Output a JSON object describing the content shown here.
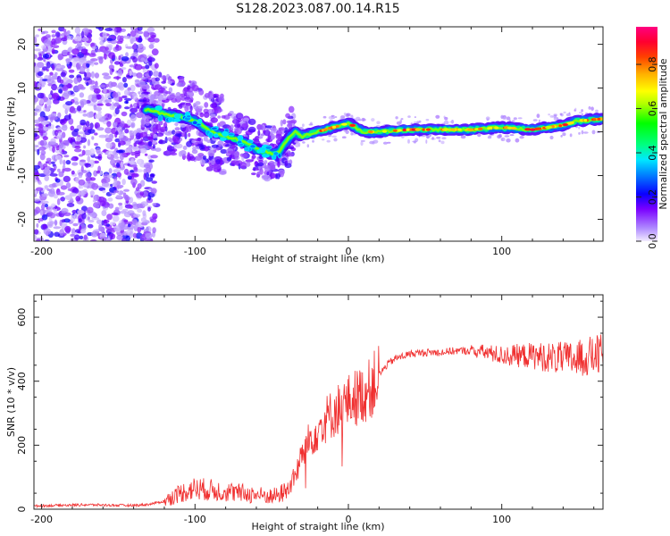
{
  "title": "S128.2023.087.00.14.R15",
  "chart_data": [
    {
      "type": "heatmap",
      "xlabel": "Height of straight line (km)",
      "ylabel": "Frequency (Hz)",
      "xlim": [
        -205,
        166
      ],
      "ylim": [
        -25,
        24
      ],
      "xticks": [
        -200,
        -100,
        0,
        100
      ],
      "yticks": [
        -20,
        -10,
        0,
        10,
        20
      ],
      "colorbar": {
        "label": "Normalized spectral amplitude",
        "range": [
          0,
          0.97
        ],
        "ticks": [
          0.0,
          0.2,
          0.4,
          0.6,
          0.8
        ]
      },
      "ridge": {
        "x": [
          -130,
          -120,
          -110,
          -100,
          -90,
          -80,
          -70,
          -60,
          -50,
          -45,
          -40,
          -35,
          -30,
          -20,
          -10,
          0,
          10,
          20,
          40,
          60,
          80,
          100,
          120,
          140,
          150,
          166
        ],
        "y": [
          5,
          4,
          3.5,
          2.5,
          0,
          -1,
          -2,
          -4,
          -5,
          -4.5,
          -2,
          0,
          -1,
          0,
          1,
          2,
          0,
          0,
          0.5,
          0.5,
          0.5,
          1,
          0.5,
          1.5,
          2.5,
          3
        ]
      }
    },
    {
      "type": "line",
      "xlabel": "Height of straight line (km)",
      "ylabel": "SNR (10 * v/v)",
      "xlim": [
        -205,
        166
      ],
      "ylim": [
        0,
        670
      ],
      "xticks": [
        -200,
        -100,
        0,
        100
      ],
      "yticks": [
        0,
        200,
        400,
        600
      ],
      "color": "#f03030",
      "series": [
        {
          "x": [
            -205,
            -190,
            -170,
            -150,
            -140,
            -130,
            -120,
            -110,
            -100,
            -90,
            -80,
            -70,
            -60,
            -50,
            -45,
            -40,
            -35,
            -30,
            -25,
            -20,
            -15,
            -10,
            -5,
            0,
            5,
            10,
            15,
            20,
            25,
            30,
            40,
            50,
            60,
            70,
            80,
            90,
            100,
            110,
            120,
            130,
            140,
            150,
            160,
            166
          ],
          "y": [
            10,
            12,
            14,
            12,
            12,
            15,
            25,
            50,
            65,
            60,
            55,
            50,
            45,
            40,
            45,
            60,
            100,
            170,
            220,
            250,
            280,
            300,
            320,
            335,
            350,
            360,
            380,
            420,
            450,
            470,
            485,
            490,
            490,
            495,
            495,
            490,
            480,
            480,
            480,
            475,
            470,
            470,
            480,
            480
          ]
        }
      ]
    }
  ]
}
